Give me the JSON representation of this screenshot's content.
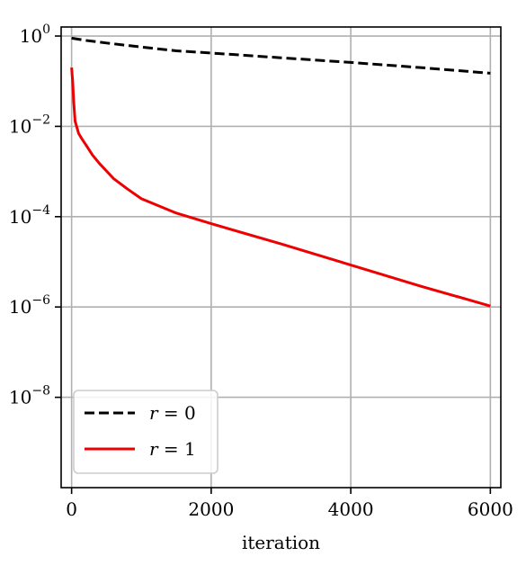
{
  "chart_data": {
    "type": "line",
    "title": "",
    "xlabel": "iteration",
    "ylabel": "",
    "xlim": [
      -150,
      6150
    ],
    "ylim_log10": [
      -10.0,
      0.2
    ],
    "yscale": "log",
    "grid": true,
    "legend_position": "lower-left",
    "x_ticks": [
      0,
      2000,
      4000,
      6000
    ],
    "x_tick_labels": [
      "0",
      "2000",
      "4000",
      "6000"
    ],
    "y_ticks_exp": [
      0,
      -2,
      -4,
      -6,
      -8
    ],
    "y_tick_labels": [
      {
        "base": "10",
        "exp": "0"
      },
      {
        "base": "10",
        "exp": "−2"
      },
      {
        "base": "10",
        "exp": "−4"
      },
      {
        "base": "10",
        "exp": "−6"
      },
      {
        "base": "10",
        "exp": "−8"
      }
    ],
    "series": [
      {
        "name": "r = 0",
        "legend_var": "r",
        "legend_val": "0",
        "color": "#000000",
        "dash": "dashed",
        "x": [
          0,
          200,
          500,
          1000,
          1500,
          2000,
          3000,
          4000,
          5000,
          6000
        ],
        "y": [
          0.9,
          0.8,
          0.7,
          0.57,
          0.47,
          0.42,
          0.33,
          0.26,
          0.2,
          0.15
        ]
      },
      {
        "name": "r = 1",
        "legend_var": "r",
        "legend_val": "1",
        "color": "#ee0000",
        "dash": "solid",
        "x": [
          0,
          15,
          30,
          50,
          80,
          100,
          150,
          200,
          300,
          400,
          600,
          800,
          1000,
          1500,
          2000,
          3000,
          4000,
          5000,
          6000
        ],
        "y": [
          0.2,
          0.1,
          0.035,
          0.013,
          0.009,
          0.007,
          0.0052,
          0.004,
          0.0023,
          0.0015,
          0.0007,
          0.00041,
          0.00025,
          0.00012,
          7e-05,
          2.5e-05,
          8.5e-06,
          2.9e-06,
          1.05e-06
        ]
      }
    ]
  }
}
